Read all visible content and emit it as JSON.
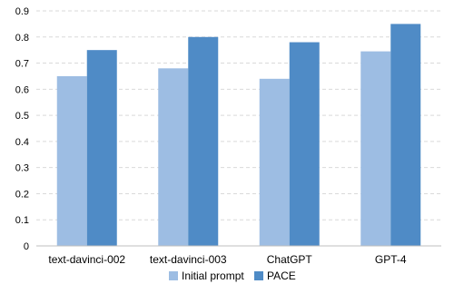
{
  "chart_data": {
    "type": "bar",
    "title": "",
    "xlabel": "",
    "ylabel": "",
    "categories": [
      "text-davinci-002",
      "text-davinci-003",
      "ChatGPT",
      "GPT-4"
    ],
    "series": [
      {
        "name": "Initial prompt",
        "color": "#9dbde3",
        "values": [
          0.65,
          0.68,
          0.64,
          0.745
        ]
      },
      {
        "name": "PACE",
        "color": "#4f8bc6",
        "values": [
          0.75,
          0.8,
          0.78,
          0.85
        ]
      }
    ],
    "ylim": [
      0,
      0.9
    ],
    "yticks": [
      "0",
      "0.1",
      "0.2",
      "0.3",
      "0.4",
      "0.5",
      "0.6",
      "0.7",
      "0.8",
      "0.9"
    ],
    "grid": true,
    "legend_position": "bottom"
  }
}
